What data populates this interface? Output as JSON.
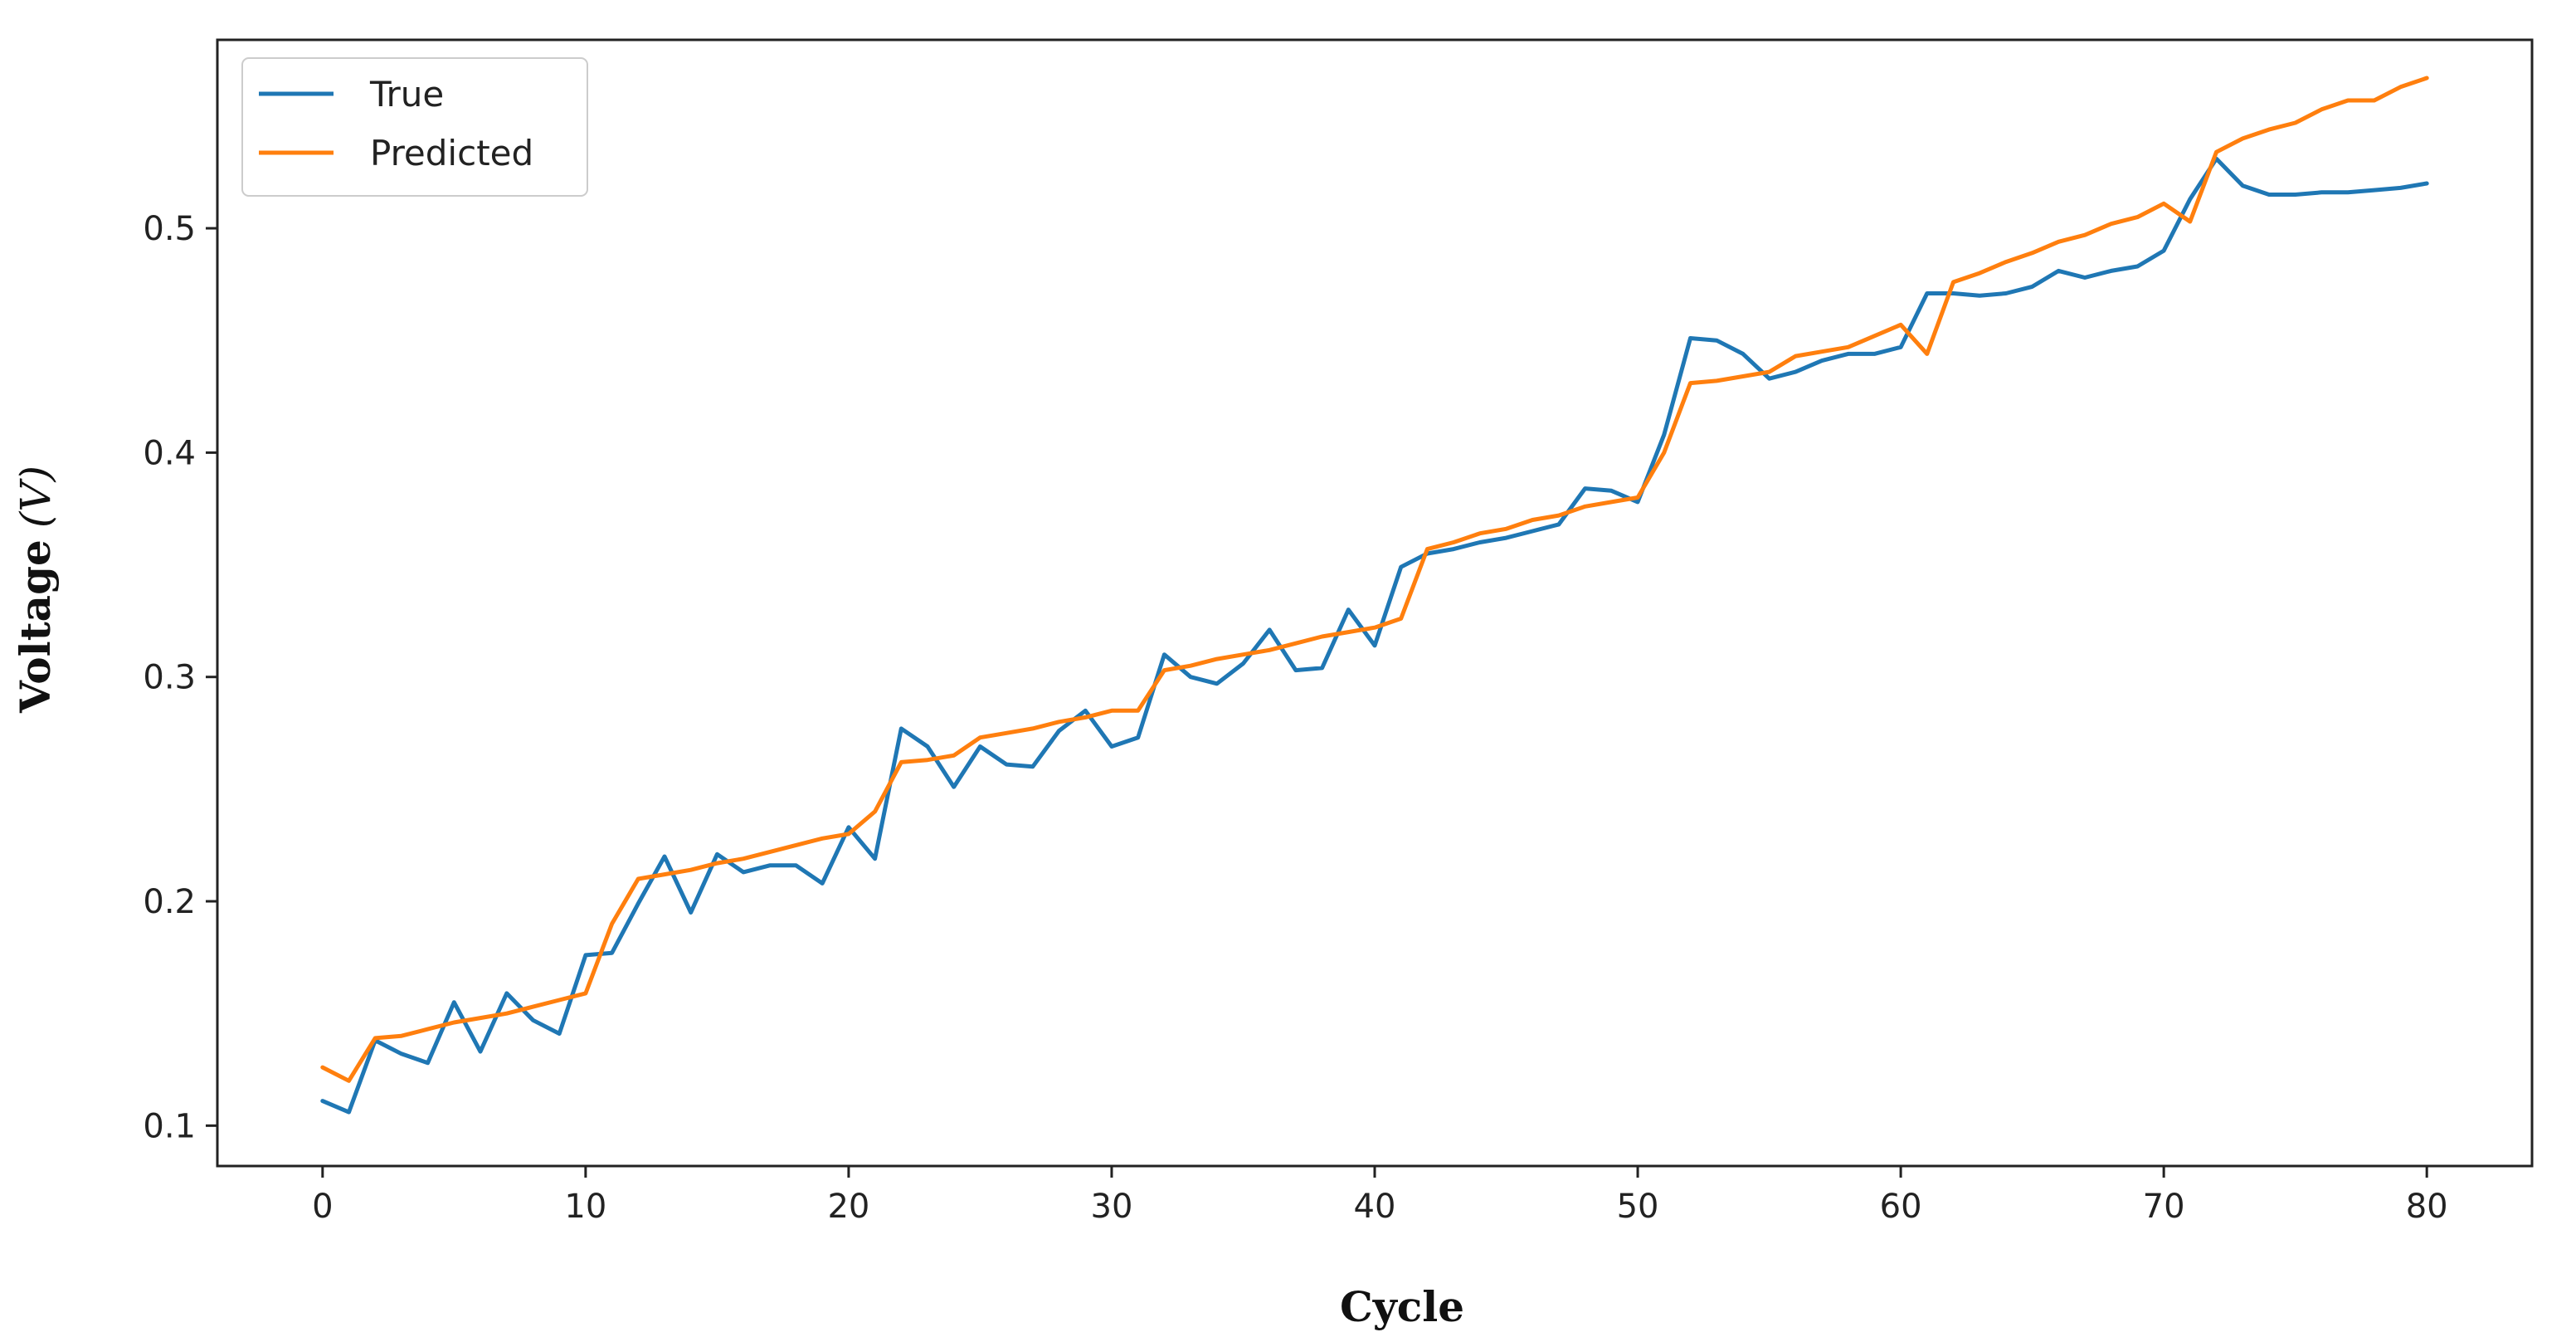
{
  "chart_data": {
    "type": "line",
    "title": "",
    "xlabel": "Cycle",
    "ylabel": "Voltage",
    "ylabel_unit": "(V)",
    "xlim": [
      -4,
      84
    ],
    "ylim": [
      0.082,
      0.584
    ],
    "xticks": [
      0,
      10,
      20,
      30,
      40,
      50,
      60,
      70,
      80
    ],
    "xtick_labels": [
      "0",
      "10",
      "20",
      "30",
      "40",
      "50",
      "60",
      "70",
      "80"
    ],
    "yticks": [
      0.1,
      0.2,
      0.3,
      0.4,
      0.5
    ],
    "ytick_labels": [
      "0.1",
      "0.2",
      "0.3",
      "0.4",
      "0.5"
    ],
    "grid": false,
    "legend_position": "top-left",
    "x": [
      0,
      1,
      2,
      3,
      4,
      5,
      6,
      7,
      8,
      9,
      10,
      11,
      12,
      13,
      14,
      15,
      16,
      17,
      18,
      19,
      20,
      21,
      22,
      23,
      24,
      25,
      26,
      27,
      28,
      29,
      30,
      31,
      32,
      33,
      34,
      35,
      36,
      37,
      38,
      39,
      40,
      41,
      42,
      43,
      44,
      45,
      46,
      47,
      48,
      49,
      50,
      51,
      52,
      53,
      54,
      55,
      56,
      57,
      58,
      59,
      60,
      61,
      62,
      63,
      64,
      65,
      66,
      67,
      68,
      69,
      70,
      71,
      72,
      73,
      74,
      75,
      76,
      77,
      78,
      79,
      80
    ],
    "series": [
      {
        "name": "True",
        "color": "#1f77b4",
        "values": [
          0.111,
          0.106,
          0.138,
          0.132,
          0.128,
          0.155,
          0.133,
          0.159,
          0.147,
          0.141,
          0.176,
          0.177,
          0.199,
          0.22,
          0.195,
          0.221,
          0.213,
          0.216,
          0.216,
          0.208,
          0.233,
          0.219,
          0.277,
          0.269,
          0.251,
          0.269,
          0.261,
          0.26,
          0.276,
          0.285,
          0.269,
          0.273,
          0.31,
          0.3,
          0.297,
          0.306,
          0.321,
          0.303,
          0.304,
          0.33,
          0.314,
          0.349,
          0.355,
          0.357,
          0.36,
          0.362,
          0.365,
          0.368,
          0.384,
          0.383,
          0.378,
          0.408,
          0.451,
          0.45,
          0.444,
          0.433,
          0.436,
          0.441,
          0.444,
          0.444,
          0.447,
          0.471,
          0.471,
          0.47,
          0.471,
          0.474,
          0.481,
          0.478,
          0.481,
          0.483,
          0.49,
          0.513,
          0.531,
          0.519,
          0.515,
          0.515,
          0.516,
          0.516,
          0.517,
          0.518,
          0.52
        ]
      },
      {
        "name": "Predicted",
        "color": "#ff7f0e",
        "values": [
          0.126,
          0.12,
          0.139,
          0.14,
          0.143,
          0.146,
          0.148,
          0.15,
          0.153,
          0.156,
          0.159,
          0.19,
          0.21,
          0.212,
          0.214,
          0.217,
          0.219,
          0.222,
          0.225,
          0.228,
          0.23,
          0.24,
          0.262,
          0.263,
          0.265,
          0.273,
          0.275,
          0.277,
          0.28,
          0.282,
          0.285,
          0.285,
          0.303,
          0.305,
          0.308,
          0.31,
          0.312,
          0.315,
          0.318,
          0.32,
          0.322,
          0.326,
          0.357,
          0.36,
          0.364,
          0.366,
          0.37,
          0.372,
          0.376,
          0.378,
          0.38,
          0.4,
          0.431,
          0.432,
          0.434,
          0.436,
          0.443,
          0.445,
          0.447,
          0.452,
          0.457,
          0.444,
          0.476,
          0.48,
          0.485,
          0.489,
          0.494,
          0.497,
          0.502,
          0.505,
          0.511,
          0.503,
          0.534,
          0.54,
          0.544,
          0.547,
          0.553,
          0.557,
          0.557,
          0.563,
          0.567
        ]
      }
    ]
  }
}
